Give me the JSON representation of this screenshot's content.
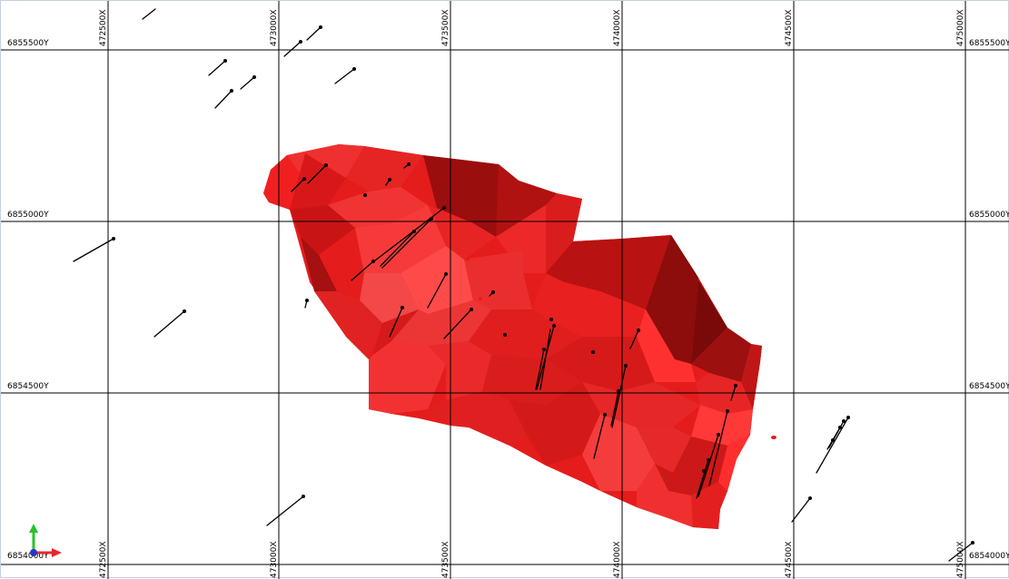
{
  "view": {
    "x_labels": [
      "472500X",
      "473000X",
      "473500X",
      "474000X",
      "474500X",
      "475000X"
    ],
    "y_labels": [
      "6855500Y",
      "6855000Y",
      "6854500Y",
      "6854000Y"
    ],
    "solid_color": "#e51919",
    "solid_shadow_color": "#7f0c0c",
    "background_color": "#ffffff",
    "drillhole_color": "#000000",
    "axis_triad": {
      "x_color": "#e8262b",
      "y_color": "#2bc12b",
      "z_color": "#2a33c9"
    }
  }
}
